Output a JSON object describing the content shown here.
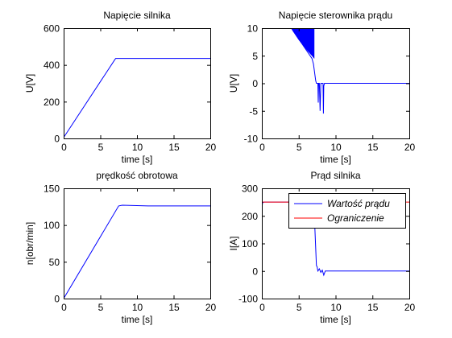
{
  "chart_data": [
    {
      "type": "line",
      "title": "Napięcie silnika",
      "xlabel": "time [s]",
      "ylabel": "U[V]",
      "xlim": [
        0,
        20
      ],
      "ylim": [
        0,
        600
      ],
      "xticks": [
        "0",
        "5",
        "10",
        "15",
        "20"
      ],
      "yticks": [
        "0",
        "200",
        "400",
        "600"
      ],
      "grid": false,
      "series": [
        {
          "color": "#0000ff",
          "x": [
            0,
            7,
            7.1,
            20
          ],
          "values": [
            5,
            430,
            435,
            435
          ]
        }
      ]
    },
    {
      "type": "line",
      "title": "Napięcie sterownika prądu",
      "xlabel": "time [s]",
      "ylabel": "U[V]",
      "xlim": [
        0,
        20
      ],
      "ylim": [
        -10,
        10
      ],
      "xticks": [
        "0",
        "5",
        "10",
        "15",
        "20"
      ],
      "yticks": [
        "-10",
        "-5",
        "0",
        "5",
        "10"
      ],
      "grid": false,
      "series": [
        {
          "color": "#0000ff",
          "x": [
            4,
            6.8,
            7,
            7.3,
            7.4,
            7.6,
            7.65,
            7.7,
            7.8,
            7.9,
            8,
            8.3,
            8.35,
            8.4,
            8.5,
            8.6,
            20
          ],
          "values": [
            10,
            4.5,
            3.5,
            0.5,
            0,
            0,
            -3.5,
            0,
            0,
            -5,
            0,
            0,
            -5.5,
            -0.5,
            0,
            0,
            0
          ]
        }
      ],
      "band": {
        "color": "#0000ff",
        "x": [
          4,
          4.2,
          5,
          6,
          6.8,
          7.1
        ],
        "upper": [
          10,
          10,
          10,
          10,
          10,
          10
        ],
        "lower": [
          10,
          9.5,
          7.9,
          6.2,
          5,
          4.5
        ]
      }
    },
    {
      "type": "line",
      "title": "prędkość obrotowa",
      "xlabel": "time [s]",
      "ylabel": "n[obr/min]",
      "xlim": [
        0,
        20
      ],
      "ylim": [
        0,
        150
      ],
      "xticks": [
        "0",
        "5",
        "10",
        "15",
        "20"
      ],
      "yticks": [
        "0",
        "50",
        "100",
        "150"
      ],
      "grid": false,
      "series": [
        {
          "color": "#0000ff",
          "x": [
            0,
            7.5,
            8,
            11.5,
            20
          ],
          "values": [
            0,
            126,
            127,
            126,
            126
          ]
        }
      ]
    },
    {
      "type": "line",
      "title": "Prąd silnika",
      "xlabel": "time [s]",
      "ylabel": "I[A]",
      "xlim": [
        0,
        20
      ],
      "ylim": [
        -100,
        300
      ],
      "xticks": [
        "0",
        "5",
        "10",
        "15",
        "20"
      ],
      "yticks": [
        "-100",
        "0",
        "100",
        "200",
        "300"
      ],
      "grid": false,
      "legend": "top-right",
      "series": [
        {
          "name": "Wartość prądu",
          "color": "#0000ff",
          "x": [
            0,
            0.1,
            0.3,
            7,
            7.2,
            7.4,
            7.5,
            7.6,
            7.8,
            8.0,
            8.2,
            8.4,
            8.6,
            9.0,
            20
          ],
          "values": [
            230,
            248,
            250,
            250,
            150,
            20,
            15,
            0,
            8,
            -5,
            3,
            -15,
            0,
            0,
            0
          ]
        },
        {
          "name": "Ograniczenie",
          "color": "#ff0000",
          "x": [
            0,
            20
          ],
          "values": [
            250,
            250
          ]
        }
      ]
    }
  ]
}
